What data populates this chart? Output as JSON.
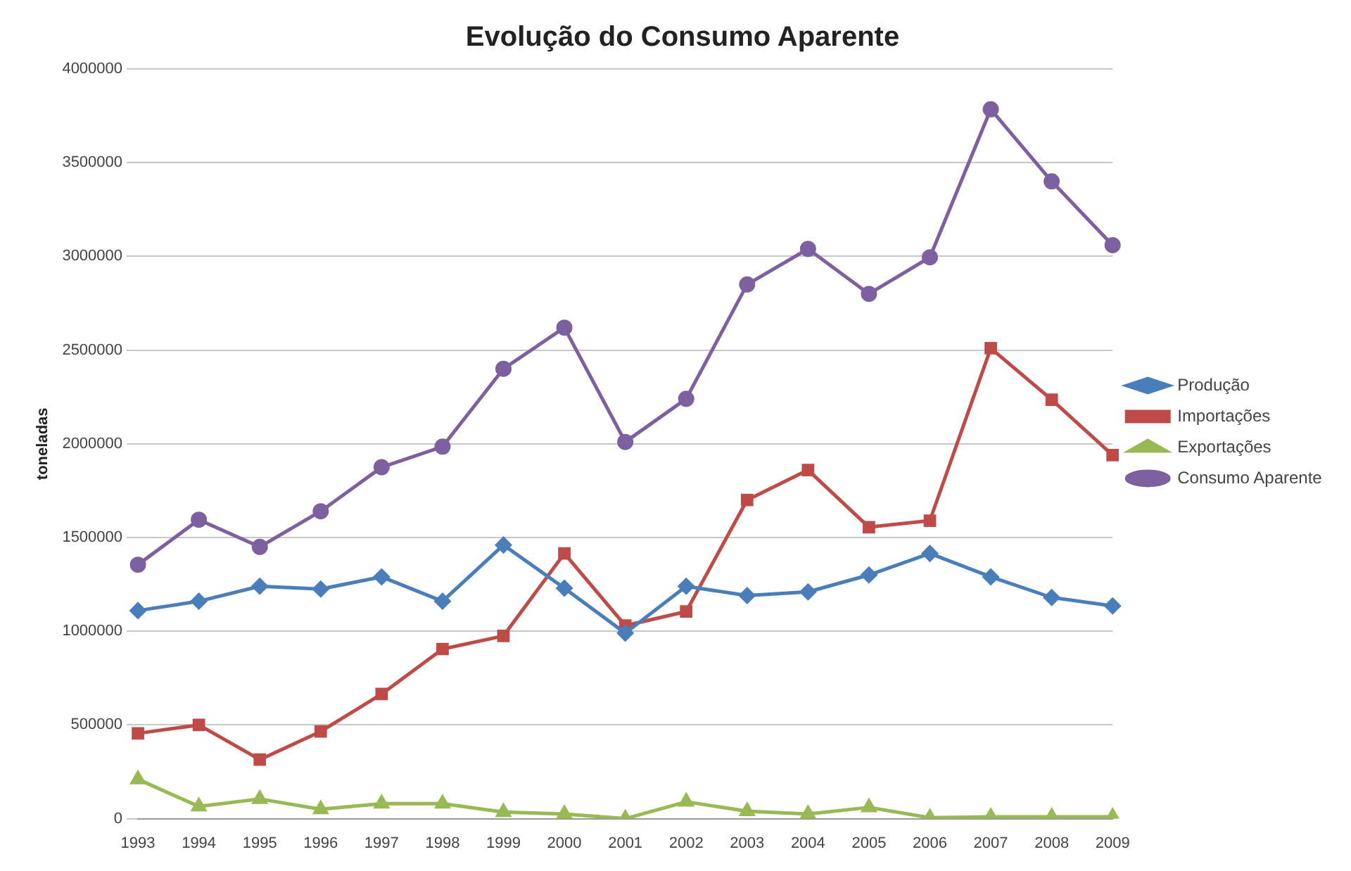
{
  "chart_data": {
    "type": "line",
    "title": "Evolução do Consumo Aparente",
    "ylabel": "toneladas",
    "categories": [
      "1993",
      "1994",
      "1995",
      "1996",
      "1997",
      "1998",
      "1999",
      "2000",
      "2001",
      "2002",
      "2003",
      "2004",
      "2005",
      "2006",
      "2007",
      "2008",
      "2009"
    ],
    "series": [
      {
        "name": "Produção",
        "color": "#4a7ebb",
        "marker": "diamond",
        "values": [
          1110000,
          1160000,
          1240000,
          1225000,
          1290000,
          1160000,
          1460000,
          1230000,
          990000,
          1240000,
          1190000,
          1210000,
          1300000,
          1415000,
          1290000,
          1180000,
          1135000
        ]
      },
      {
        "name": "Importações",
        "color": "#be4b48",
        "marker": "square",
        "values": [
          455000,
          500000,
          315000,
          465000,
          665000,
          905000,
          975000,
          1415000,
          1030000,
          1105000,
          1700000,
          1860000,
          1555000,
          1590000,
          2510000,
          2235000,
          1940000
        ]
      },
      {
        "name": "Exportações",
        "color": "#98b954",
        "marker": "triangle",
        "values": [
          210000,
          65000,
          105000,
          50000,
          80000,
          80000,
          35000,
          25000,
          0,
          90000,
          40000,
          25000,
          60000,
          5000,
          10000,
          10000,
          10000
        ]
      },
      {
        "name": "Consumo Aparente",
        "color": "#7d60a0",
        "marker": "circle",
        "values": [
          1355000,
          1595000,
          1450000,
          1640000,
          1875000,
          1985000,
          2400000,
          2620000,
          2010000,
          2240000,
          2850000,
          3040000,
          2800000,
          2995000,
          3785000,
          3400000,
          3060000
        ]
      }
    ],
    "ylim": [
      0,
      4000000
    ],
    "yticks": [
      0,
      500000,
      1000000,
      1500000,
      2000000,
      2500000,
      3000000,
      3500000,
      4000000
    ],
    "grid": "y",
    "legend": "right",
    "line_style": "solid"
  }
}
